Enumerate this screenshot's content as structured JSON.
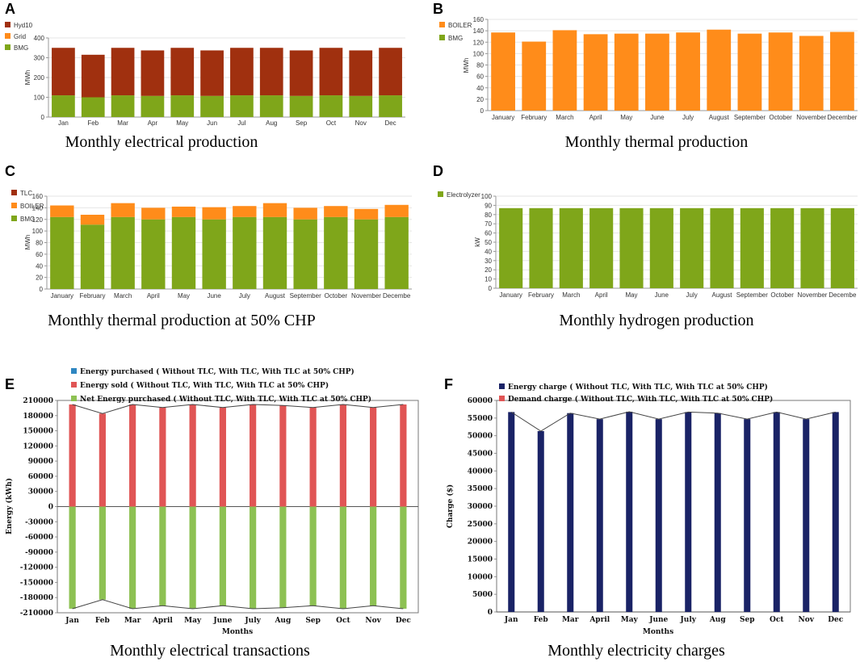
{
  "chart_data": [
    {
      "id": "A",
      "type": "bar",
      "stacked": true,
      "panel_label": "A",
      "caption": "Monthly electrical production",
      "ylabel": "MWh",
      "ylim": [
        0,
        400
      ],
      "yticks": [
        0,
        100,
        200,
        300,
        400
      ],
      "categories": [
        "Jan",
        "Feb",
        "Mar",
        "Apr",
        "May",
        "Jun",
        "Jul",
        "Aug",
        "Sep",
        "Oct",
        "Nov",
        "Dec"
      ],
      "legend": [
        "Hyd10",
        "Grid",
        "BMG"
      ],
      "series": [
        {
          "name": "BMG",
          "color": "#7fa61a",
          "values": [
            110,
            100,
            110,
            107,
            110,
            107,
            110,
            110,
            107,
            110,
            107,
            110
          ]
        },
        {
          "name": "Grid",
          "color": "#ff8c1a",
          "values": [
            0,
            0,
            0,
            0,
            0,
            0,
            0,
            0,
            0,
            0,
            0,
            0
          ]
        },
        {
          "name": "Hyd10",
          "color": "#a0300f",
          "values": [
            240,
            215,
            240,
            230,
            240,
            230,
            240,
            240,
            230,
            240,
            230,
            240
          ]
        }
      ]
    },
    {
      "id": "B",
      "type": "bar",
      "stacked": true,
      "panel_label": "B",
      "caption": "Monthly thermal production",
      "ylabel": "MWh",
      "ylim": [
        0,
        160
      ],
      "yticks": [
        0,
        20,
        40,
        60,
        80,
        100,
        120,
        140,
        160
      ],
      "categories": [
        "January",
        "February",
        "March",
        "April",
        "May",
        "June",
        "July",
        "August",
        "September",
        "October",
        "November",
        "December"
      ],
      "legend": [
        "BOILER",
        "BMG"
      ],
      "series": [
        {
          "name": "BMG",
          "color": "#7fa61a",
          "values": [
            0,
            0,
            0,
            0,
            0,
            0,
            0,
            0,
            0,
            0,
            0,
            0
          ]
        },
        {
          "name": "BOILER",
          "color": "#ff8c1a",
          "values": [
            137,
            121,
            141,
            134,
            135,
            135,
            137,
            142,
            135,
            137,
            131,
            138
          ]
        }
      ]
    },
    {
      "id": "C",
      "type": "bar",
      "stacked": true,
      "panel_label": "C",
      "caption": "Monthly thermal production at 50% CHP",
      "ylabel": "MWh",
      "ylim": [
        0,
        160
      ],
      "yticks": [
        0,
        20,
        40,
        60,
        80,
        100,
        120,
        140,
        160
      ],
      "categories": [
        "January",
        "February",
        "March",
        "April",
        "May",
        "June",
        "July",
        "August",
        "September",
        "October",
        "November",
        "Decembe"
      ],
      "legend": [
        "TLC",
        "BOILER",
        "BMG"
      ],
      "series": [
        {
          "name": "BMG",
          "color": "#7fa61a",
          "values": [
            124,
            111,
            124,
            120,
            124,
            120,
            124,
            124,
            120,
            124,
            120,
            124
          ]
        },
        {
          "name": "BOILER",
          "color": "#ff8c1a",
          "values": [
            20,
            17,
            24,
            20,
            18,
            21,
            19,
            24,
            20,
            19,
            18,
            21
          ]
        },
        {
          "name": "TLC",
          "color": "#a0300f",
          "values": [
            0,
            0,
            0,
            0,
            0,
            0,
            0,
            0,
            0,
            0,
            0,
            0
          ]
        }
      ]
    },
    {
      "id": "D",
      "type": "bar",
      "stacked": false,
      "panel_label": "D",
      "caption": "Monthly hydrogen production",
      "ylabel": "kW",
      "ylim": [
        0,
        100
      ],
      "yticks": [
        0,
        10,
        20,
        30,
        40,
        50,
        60,
        70,
        80,
        90,
        100
      ],
      "categories": [
        "January",
        "February",
        "March",
        "April",
        "May",
        "June",
        "July",
        "August",
        "September",
        "October",
        "November",
        "Decembe"
      ],
      "legend": [
        "Electrolyzer"
      ],
      "series": [
        {
          "name": "Electrolyzer",
          "color": "#7fa61a",
          "values": [
            87,
            87,
            87,
            87,
            87,
            87,
            87,
            87,
            87,
            87,
            87,
            87
          ]
        }
      ]
    },
    {
      "id": "E",
      "type": "bar",
      "stacked": false,
      "panel_label": "E",
      "caption": "Monthly electrical transactions",
      "ylabel": "Energy (kWh)",
      "xlabel": "Months",
      "ylim": [
        -210000,
        210000
      ],
      "yticks": [
        -210000,
        -180000,
        -150000,
        -120000,
        -90000,
        -60000,
        -30000,
        0,
        30000,
        60000,
        90000,
        120000,
        150000,
        180000,
        210000
      ],
      "categories": [
        "Jan",
        "Feb",
        "Mar",
        "April",
        "May",
        "June",
        "July",
        "Aug",
        "Sep",
        "Oct",
        "Nov",
        "Dec"
      ],
      "legend": [
        "Energy purchased ( Without TLC, With TLC, With TLC at 50% CHP)",
        "Energy sold ( Without TLC, With TLC, With TLC at 50% CHP)",
        "Net Energy purchased ( Without TLC, With TLC, With TLC at 50% CHP)"
      ],
      "series": [
        {
          "name": "Energy purchased",
          "color": "#2e86c1",
          "values": [
            0,
            0,
            0,
            0,
            0,
            0,
            0,
            0,
            0,
            0,
            0,
            0
          ]
        },
        {
          "name": "Energy sold",
          "color": "#e05555",
          "values": [
            202000,
            184000,
            202000,
            196000,
            202000,
            196000,
            202000,
            200000,
            196000,
            202000,
            196000,
            202000
          ]
        },
        {
          "name": "Net Energy purchased",
          "color": "#8dc153",
          "values": [
            -202000,
            -184000,
            -202000,
            -196000,
            -202000,
            -196000,
            -202000,
            -200000,
            -196000,
            -202000,
            -196000,
            -202000
          ]
        }
      ]
    },
    {
      "id": "F",
      "type": "bar",
      "stacked": false,
      "panel_label": "F",
      "caption": "Monthly electricity charges",
      "ylabel": "Charge ($)",
      "xlabel": "Months",
      "ylim": [
        0,
        60000
      ],
      "yticks": [
        0,
        5000,
        10000,
        15000,
        20000,
        25000,
        30000,
        35000,
        40000,
        45000,
        50000,
        55000,
        60000
      ],
      "categories": [
        "Jan",
        "Feb",
        "Mar",
        "April",
        "May",
        "June",
        "July",
        "Aug",
        "Sep",
        "Oct",
        "Nov",
        "Dec"
      ],
      "legend": [
        "Energy charge ( Without TLC, With TLC, With TLC at 50% CHP)",
        "Demand charge ( Without TLC, With TLC, With TLC at 50% CHP)"
      ],
      "series": [
        {
          "name": "Energy charge",
          "color": "#1a2366",
          "values": [
            56700,
            51300,
            56400,
            54700,
            56800,
            54700,
            56700,
            56400,
            54700,
            56700,
            54700,
            56700
          ]
        },
        {
          "name": "Demand charge",
          "color": "#e05555",
          "values": [
            0,
            0,
            0,
            0,
            0,
            0,
            0,
            0,
            0,
            0,
            0,
            0
          ]
        }
      ]
    }
  ]
}
